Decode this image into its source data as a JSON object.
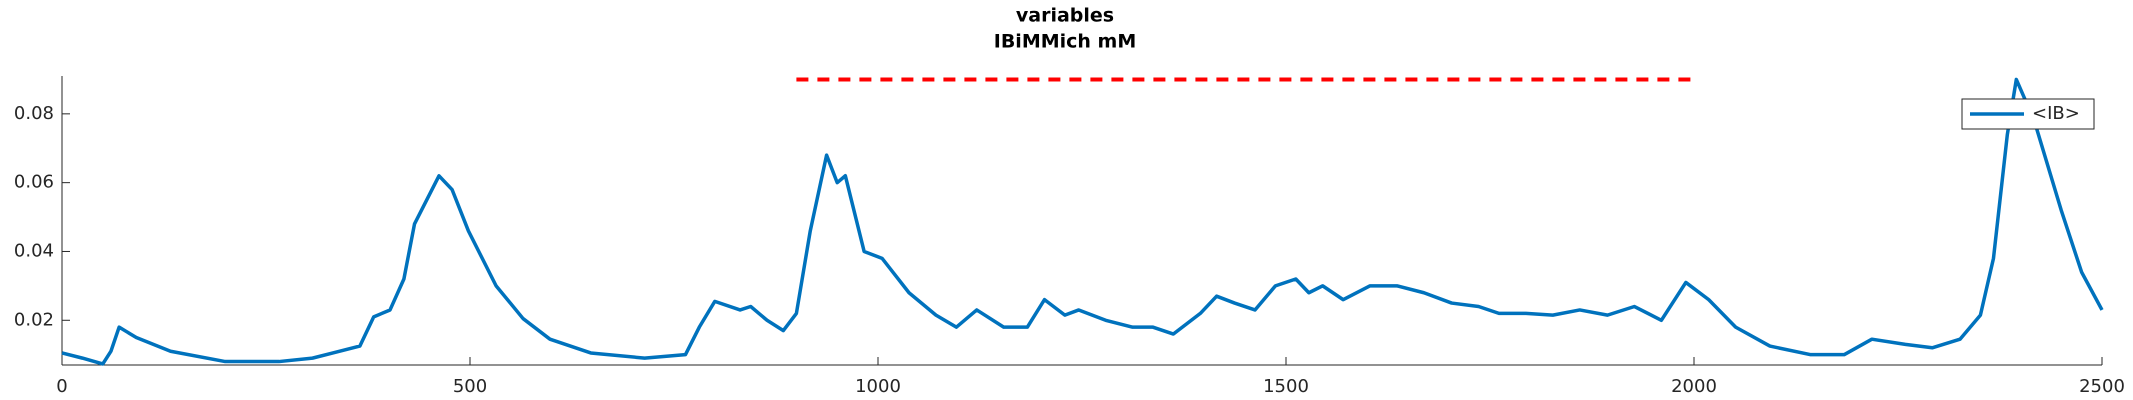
{
  "chart_data": {
    "type": "line",
    "title": [
      "variables",
      "IBiMMich mM"
    ],
    "x": [
      0,
      25,
      50,
      60,
      70,
      91,
      133,
      200,
      266,
      307,
      332,
      365,
      382,
      402,
      419,
      432,
      462,
      478,
      498,
      532,
      565,
      598,
      648,
      714,
      764,
      781,
      800,
      831,
      844,
      864,
      884,
      900,
      917,
      937,
      950,
      960,
      983,
      1005,
      1038,
      1071,
      1096,
      1121,
      1154,
      1183,
      1204,
      1229,
      1246,
      1279,
      1312,
      1337,
      1362,
      1395,
      1415,
      1437,
      1462,
      1487,
      1512,
      1528,
      1545,
      1570,
      1603,
      1636,
      1669,
      1703,
      1736,
      1761,
      1794,
      1827,
      1860,
      1894,
      1927,
      1960,
      1990,
      2018,
      2051,
      2093,
      2143,
      2184,
      2218,
      2259,
      2292,
      2326,
      2351,
      2367,
      2384,
      2395,
      2417,
      2450,
      2475,
      2500
    ],
    "series": [
      {
        "name": "<IB>",
        "color": "#0072bd",
        "values": [
          0.0105,
          0.009,
          0.0073,
          0.011,
          0.018,
          0.015,
          0.011,
          0.008,
          0.008,
          0.009,
          0.0105,
          0.0125,
          0.021,
          0.023,
          0.032,
          0.048,
          0.062,
          0.058,
          0.046,
          0.03,
          0.0205,
          0.0145,
          0.0105,
          0.009,
          0.01,
          0.018,
          0.0255,
          0.023,
          0.024,
          0.02,
          0.017,
          0.022,
          0.046,
          0.068,
          0.06,
          0.062,
          0.04,
          0.038,
          0.028,
          0.0215,
          0.018,
          0.023,
          0.018,
          0.018,
          0.026,
          0.0215,
          0.023,
          0.02,
          0.018,
          0.018,
          0.016,
          0.022,
          0.027,
          0.025,
          0.023,
          0.03,
          0.032,
          0.028,
          0.03,
          0.026,
          0.03,
          0.03,
          0.028,
          0.025,
          0.024,
          0.022,
          0.022,
          0.0215,
          0.023,
          0.0215,
          0.024,
          0.02,
          0.031,
          0.026,
          0.018,
          0.0125,
          0.01,
          0.01,
          0.0145,
          0.013,
          0.012,
          0.0145,
          0.0215,
          0.038,
          0.074,
          0.09,
          0.078,
          0.052,
          0.034,
          0.023
        ]
      }
    ],
    "reference_line": {
      "x": [
        900,
        2000
      ],
      "y": 0.09,
      "color": "#ff0000"
    },
    "xlim": [
      0,
      2500
    ],
    "xticks": [
      0,
      500,
      1000,
      1500,
      2000,
      2500
    ],
    "ylim": [
      0.007,
      0.091
    ],
    "yticks": [
      0.02,
      0.04,
      0.06,
      0.08
    ],
    "legend": "top-right"
  }
}
